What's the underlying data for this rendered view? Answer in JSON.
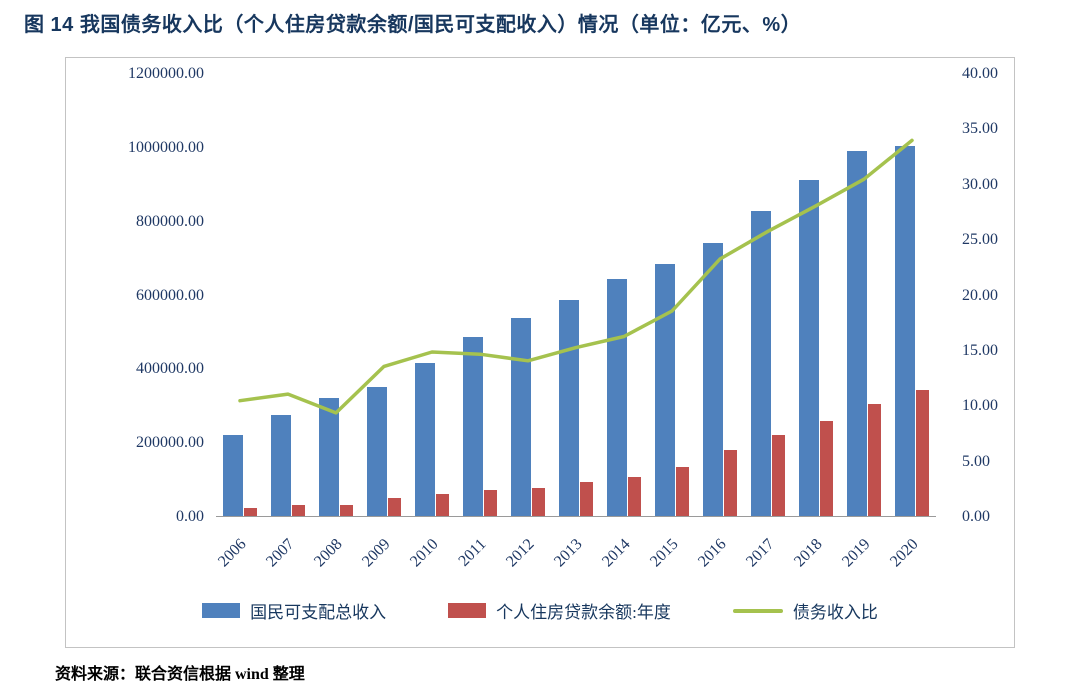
{
  "title": "图 14  我国债务收入比（个人住房贷款余额/国民可支配收入）情况（单位：亿元、%）",
  "source": "资料来源：联合资信根据 wind 整理",
  "legend": {
    "bar_primary_label": "国民可支配总收入",
    "bar_secondary_label": "个人住房贷款余额:年度",
    "line_label": "债务收入比"
  },
  "colors": {
    "bar_primary": "#4F81BD",
    "bar_secondary": "#C0504D",
    "line": "#A5C24E",
    "axis_text": "#1F3864",
    "title_text": "#17375E"
  },
  "chart_data": {
    "type": "bar",
    "subtype": "bar+line combo",
    "title": "图 14 我国债务收入比（个人住房贷款余额/国民可支配收入）情况（单位：亿元、%）",
    "categories": [
      "2006",
      "2007",
      "2008",
      "2009",
      "2010",
      "2011",
      "2012",
      "2013",
      "2014",
      "2015",
      "2016",
      "2017",
      "2018",
      "2019",
      "2020"
    ],
    "series": [
      {
        "name": "国民可支配总收入",
        "type": "bar",
        "axis": "left",
        "color": "#4F81BD",
        "values": [
          220000,
          275000,
          320000,
          350000,
          415000,
          485000,
          537000,
          587000,
          643000,
          683000,
          742000,
          828000,
          912000,
          990000,
          1005000
        ]
      },
      {
        "name": "个人住房贷款余额:年度",
        "type": "bar",
        "axis": "left",
        "color": "#C0504D",
        "values": [
          23000,
          30000,
          30000,
          49000,
          61000,
          70000,
          76000,
          92000,
          107000,
          133000,
          180000,
          220000,
          258000,
          305000,
          343000
        ]
      },
      {
        "name": "债务收入比",
        "type": "line",
        "axis": "right",
        "color": "#A5C24E",
        "values": [
          10.5,
          11.1,
          9.4,
          13.6,
          14.9,
          14.7,
          14.1,
          15.3,
          16.3,
          18.6,
          23.3,
          25.8,
          28.1,
          30.5,
          34.0
        ]
      }
    ],
    "left_axis": {
      "min": 0,
      "max": 1200000,
      "step": 200000,
      "tick_format": "0.00"
    },
    "right_axis": {
      "min": 0,
      "max": 40,
      "step": 5,
      "tick_format": "0.00"
    },
    "grid": false,
    "legend_position": "bottom"
  }
}
